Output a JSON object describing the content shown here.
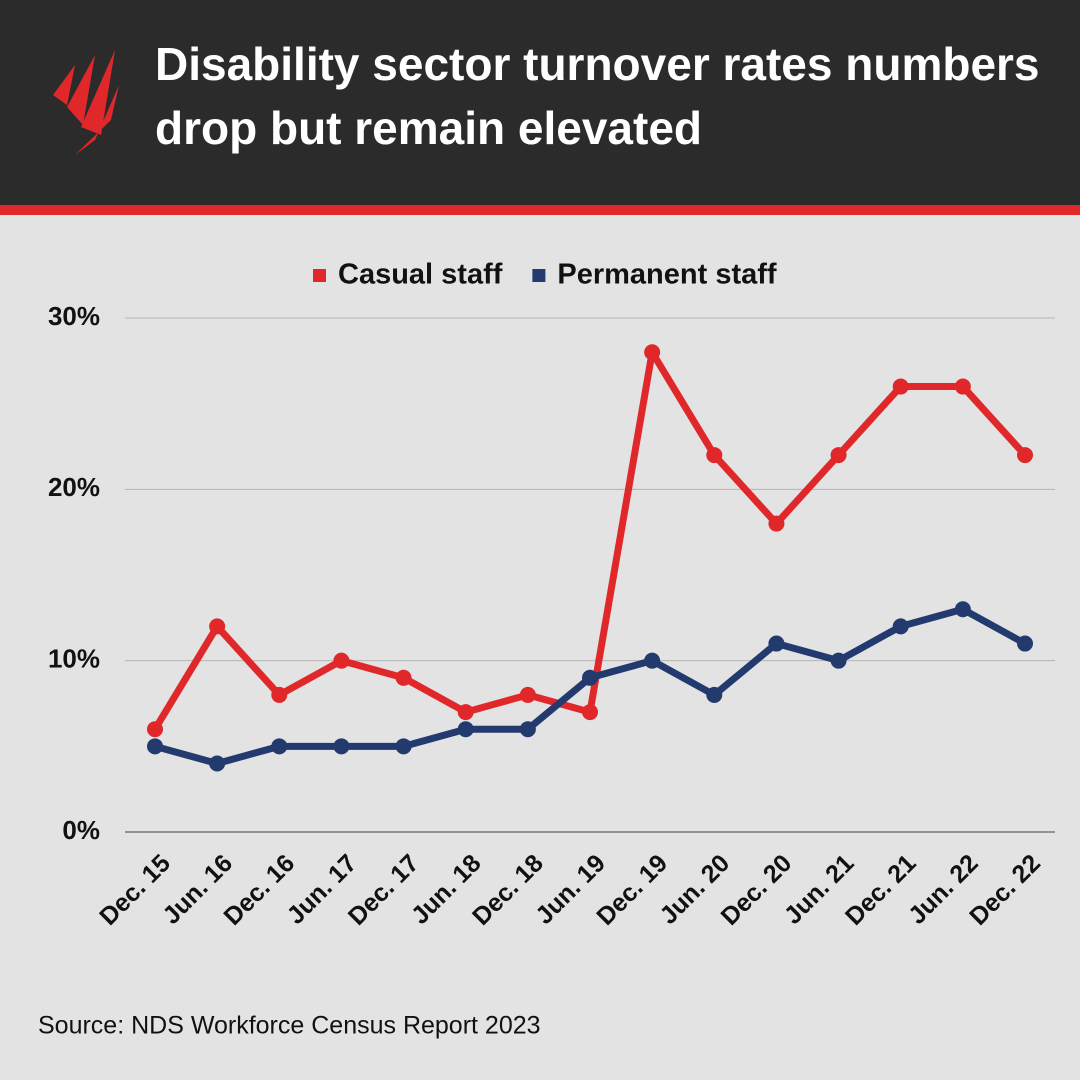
{
  "chart_data": {
    "type": "line",
    "title": "Disability sector turnover rates numbers drop but remain elevated",
    "source": "Source: NDS Workforce Census Report 2023",
    "categories": [
      "Dec. 15",
      "Jun. 16",
      "Dec. 16",
      "Jun. 17",
      "Dec. 17",
      "Jun. 18",
      "Dec. 18",
      "Jun. 19",
      "Dec. 19",
      "Jun. 20",
      "Dec. 20",
      "Jun. 21",
      "Dec. 21",
      "Jun. 22",
      "Dec. 22"
    ],
    "series": [
      {
        "name": "Casual staff",
        "color": "#e0282a",
        "values": [
          6,
          12,
          8,
          10,
          9,
          7,
          8,
          7,
          28,
          22,
          18,
          22,
          26,
          26,
          22
        ]
      },
      {
        "name": "Permanent staff",
        "color": "#233a6e",
        "values": [
          5,
          4,
          5,
          5,
          5,
          6,
          6,
          9,
          10,
          8,
          11,
          10,
          12,
          13,
          11
        ]
      }
    ],
    "ylim": [
      0,
      30
    ],
    "yticks": [
      {
        "value": 0,
        "label": "0%"
      },
      {
        "value": 10,
        "label": "10%"
      },
      {
        "value": 20,
        "label": "20%"
      },
      {
        "value": 30,
        "label": "30%"
      }
    ],
    "grid": true,
    "legend": "top"
  }
}
